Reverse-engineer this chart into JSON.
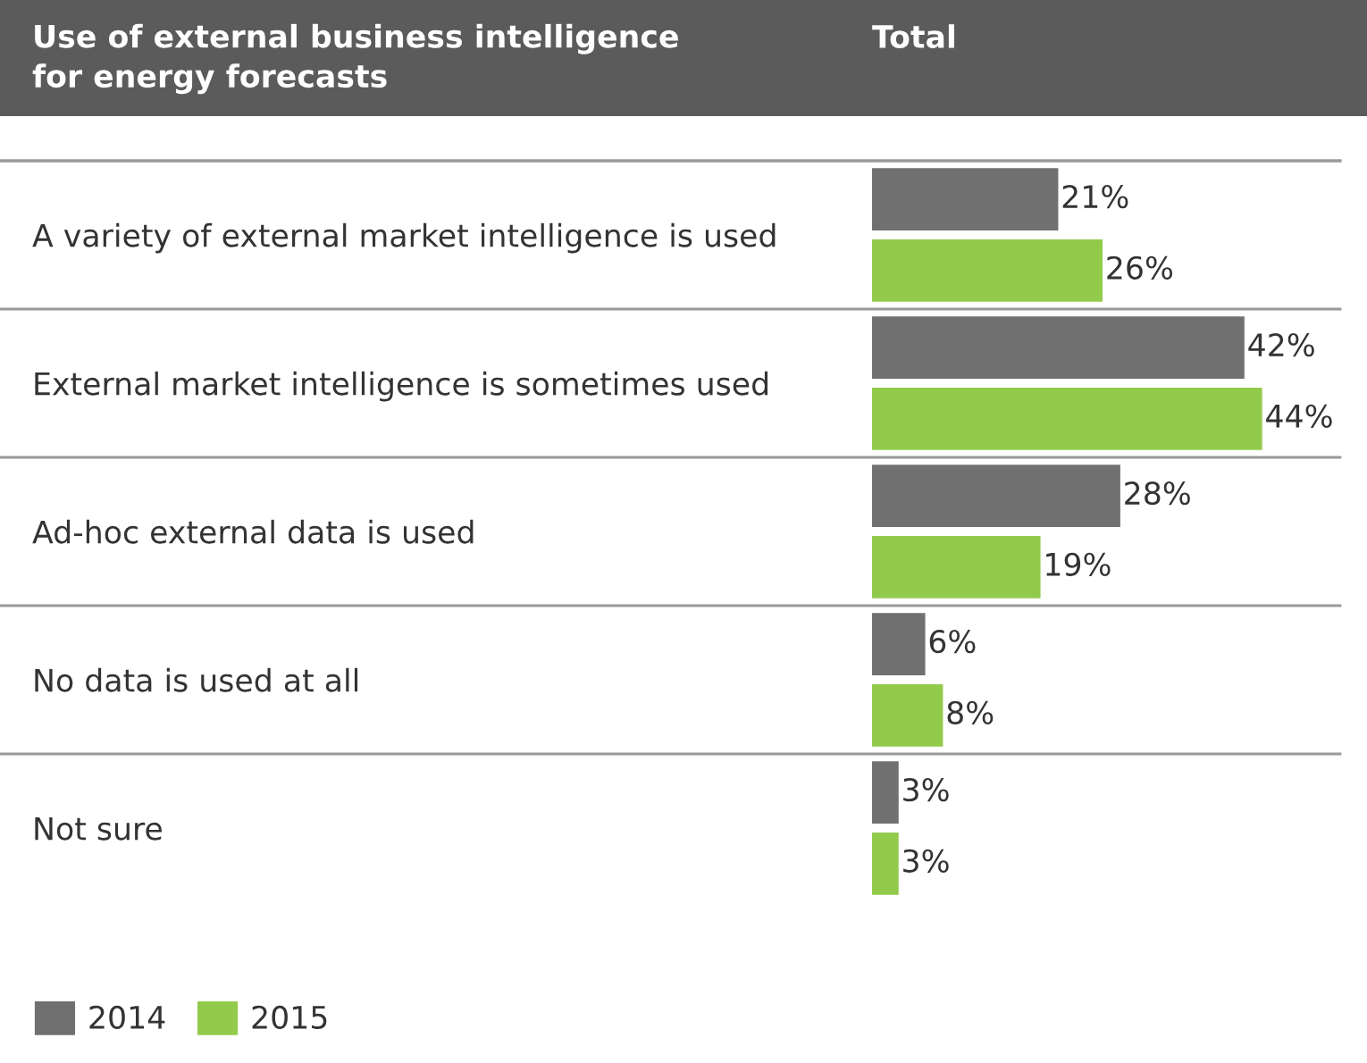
{
  "chart_data": {
    "type": "bar",
    "orientation": "horizontal",
    "title": "Use of external business intelligence\nfor energy forecasts",
    "annotations": [
      "Total"
    ],
    "categories": [
      "A variety of external market intelligence is used",
      "External market intelligence is sometimes used",
      "Ad-hoc external data is used",
      "No data is used at all",
      "Not sure"
    ],
    "series": [
      {
        "name": "2014",
        "color": "#707070",
        "values": [
          21,
          42,
          28,
          6,
          3
        ],
        "value_labels": [
          "21%",
          "42%",
          "28%",
          "6%",
          "3%"
        ]
      },
      {
        "name": "2015",
        "color": "#92cb4c",
        "values": [
          26,
          44,
          19,
          8,
          3
        ],
        "value_labels": [
          "26%",
          "44%",
          "19%",
          "8%",
          "3%"
        ]
      }
    ],
    "tick_labels": "y",
    "grid": false,
    "legend": "bottom left"
  }
}
